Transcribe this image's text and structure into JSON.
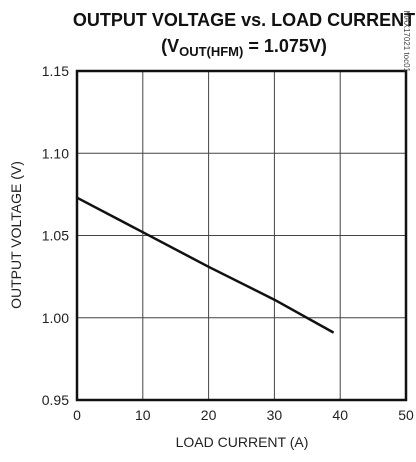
{
  "chart_data": {
    "type": "line",
    "title_line1": "OUTPUT VOLTAGE vs. LOAD CURRENT",
    "title_line2_prefix": "(V",
    "title_line2_sub": "OUT(HFM)",
    "title_line2_suffix": " = 1.075V)",
    "xlabel": "LOAD CURRENT (A)",
    "ylabel": "OUTPUT VOLTAGE (V)",
    "figure_code": "MAX17021 toc01",
    "xlim": [
      0,
      50
    ],
    "ylim": [
      0.95,
      1.15
    ],
    "x_ticks": [
      0,
      10,
      20,
      30,
      40,
      50
    ],
    "y_ticks": [
      0.95,
      1.0,
      1.05,
      1.1,
      1.15
    ],
    "x_tick_labels": [
      "0",
      "10",
      "20",
      "30",
      "40",
      "50"
    ],
    "y_tick_labels": [
      "0.95",
      "1.00",
      "1.05",
      "1.10",
      "1.15"
    ],
    "grid": true,
    "series": [
      {
        "x": [
          0,
          10,
          20,
          30,
          39
        ],
        "y": [
          1.073,
          1.052,
          1.031,
          1.011,
          0.991
        ]
      }
    ]
  }
}
